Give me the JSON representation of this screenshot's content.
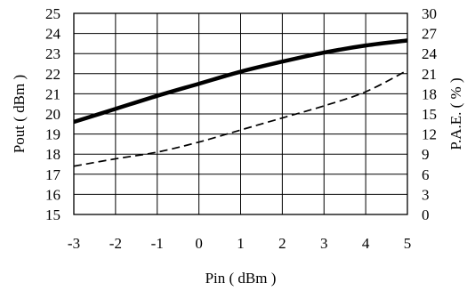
{
  "chart_data": {
    "type": "line",
    "title": "",
    "xlabel": "Pin ( dBm )",
    "ylabel_left": "Pout ( dBm )",
    "ylabel_right": "P.A.E. ( % )",
    "xlim": [
      -3,
      5
    ],
    "ylim_left": [
      15,
      25
    ],
    "ylim_right": [
      0,
      30
    ],
    "grid": true,
    "legend": "none",
    "x_ticks": [
      -3,
      -2,
      -1,
      0,
      1,
      2,
      3,
      4,
      5
    ],
    "y_left_ticks": [
      15,
      16,
      17,
      18,
      19,
      20,
      21,
      22,
      23,
      24,
      25
    ],
    "y_right_ticks": [
      0,
      3,
      6,
      9,
      12,
      15,
      18,
      21,
      24,
      27,
      30
    ],
    "series": [
      {
        "axis": "left",
        "style": "solid-thick",
        "color": "#000000",
        "x": [
          -3,
          -2,
          -1,
          0,
          1,
          2,
          3,
          4,
          5
        ],
        "y": [
          19.6,
          20.25,
          20.9,
          21.5,
          22.1,
          22.6,
          23.05,
          23.4,
          23.65
        ]
      },
      {
        "axis": "right",
        "style": "dashed",
        "color": "#000000",
        "x": [
          -3,
          -2,
          -1,
          0,
          1,
          2,
          3,
          4,
          5
        ],
        "y": [
          7.2,
          8.3,
          9.3,
          10.8,
          12.6,
          14.4,
          16.2,
          18.3,
          21.5
        ]
      }
    ]
  }
}
